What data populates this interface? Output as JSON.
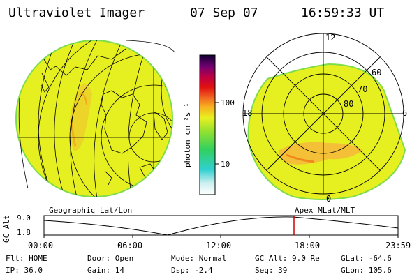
{
  "header": {
    "instrument": "Ultraviolet Imager",
    "date": "07 Sep 07",
    "time": "16:59:33 UT"
  },
  "colorbar": {
    "unit_label": "photon cm⁻²s⁻¹",
    "ticks": [
      "100",
      "10"
    ]
  },
  "polar_plot": {
    "mlt_labels": [
      "12",
      "18",
      "6",
      "0"
    ],
    "lat_labels": [
      "60",
      "70",
      "80"
    ]
  },
  "timeline": {
    "left_title": "Geographic Lat/Lon",
    "right_title": "Apex MLat/MLT",
    "axis_label": "GC Alt",
    "y_ticks": [
      "9.0",
      "1.8"
    ],
    "x_ticks": [
      "00:00",
      "06:00",
      "12:00",
      "18:00",
      "23:59"
    ]
  },
  "status": {
    "row1": [
      {
        "key": "Flt:",
        "val": "HOME"
      },
      {
        "key": "Door:",
        "val": "Open"
      },
      {
        "key": "Mode:",
        "val": "Normal"
      },
      {
        "key": "GC Alt:",
        "val": "9.0 Re"
      },
      {
        "key": "GLat:",
        "val": "-64.6"
      }
    ],
    "row2": [
      {
        "key": "IP:",
        "val": "36.0"
      },
      {
        "key": "Gain:",
        "val": "14"
      },
      {
        "key": "Dsp:",
        "val": "-2.4"
      },
      {
        "key": "Seq:",
        "val": "39"
      },
      {
        "key": "GLon:",
        "val": "105.6"
      }
    ]
  },
  "colors": {
    "disk_fill": "#e6f020",
    "disk_edge": "#7fdc4a",
    "aurora": "#f0a010",
    "marker": "#cc0000"
  }
}
